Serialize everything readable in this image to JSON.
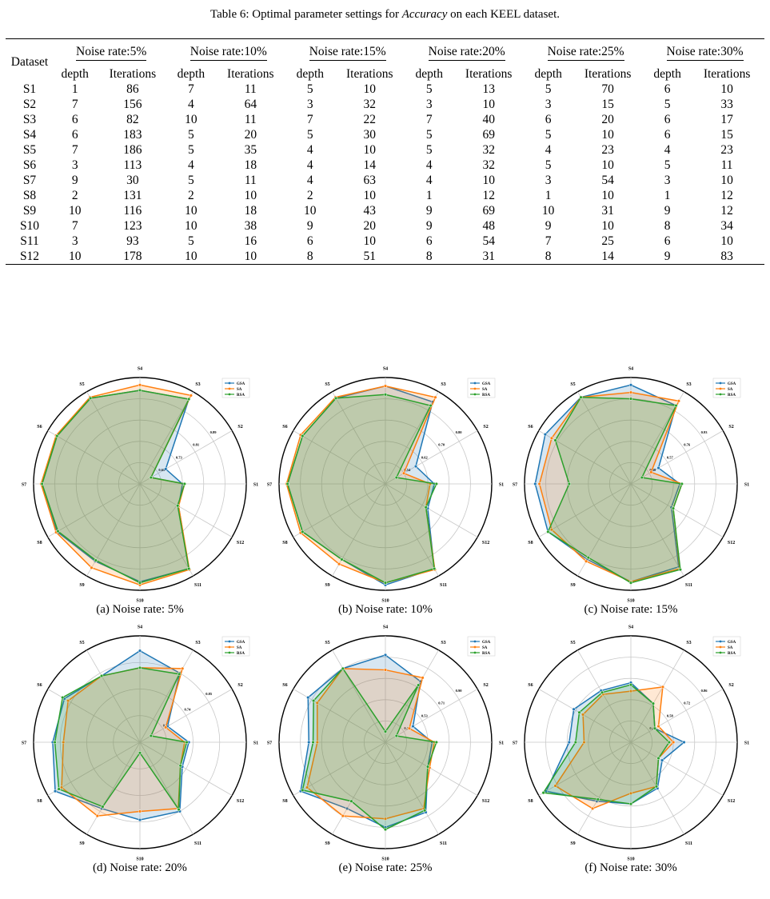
{
  "caption": {
    "prefix": "Table 6: Optimal parameter settings for ",
    "italic": "Accuracy",
    "suffix": " on each KEEL dataset."
  },
  "table": {
    "dataset_header": "Dataset",
    "groups": [
      "Noise rate:5%",
      "Noise rate:10%",
      "Noise rate:15%",
      "Noise rate:20%",
      "Noise rate:25%",
      "Noise rate:30%"
    ],
    "sub_headers": [
      "depth",
      "Iterations"
    ],
    "rows": [
      [
        "S1",
        "1",
        "86",
        "7",
        "11",
        "5",
        "10",
        "5",
        "13",
        "5",
        "70",
        "6",
        "10"
      ],
      [
        "S2",
        "7",
        "156",
        "4",
        "64",
        "3",
        "32",
        "3",
        "10",
        "3",
        "15",
        "5",
        "33"
      ],
      [
        "S3",
        "6",
        "82",
        "10",
        "11",
        "7",
        "22",
        "7",
        "40",
        "6",
        "20",
        "6",
        "17"
      ],
      [
        "S4",
        "6",
        "183",
        "5",
        "20",
        "5",
        "30",
        "5",
        "69",
        "5",
        "10",
        "6",
        "15"
      ],
      [
        "S5",
        "7",
        "186",
        "5",
        "35",
        "4",
        "10",
        "5",
        "32",
        "4",
        "23",
        "4",
        "23"
      ],
      [
        "S6",
        "3",
        "113",
        "4",
        "18",
        "4",
        "14",
        "4",
        "32",
        "5",
        "10",
        "5",
        "11"
      ],
      [
        "S7",
        "9",
        "30",
        "5",
        "11",
        "4",
        "63",
        "4",
        "10",
        "3",
        "54",
        "3",
        "10"
      ],
      [
        "S8",
        "2",
        "131",
        "2",
        "10",
        "2",
        "10",
        "1",
        "12",
        "1",
        "10",
        "1",
        "12"
      ],
      [
        "S9",
        "10",
        "116",
        "10",
        "18",
        "10",
        "43",
        "9",
        "69",
        "10",
        "31",
        "9",
        "12"
      ],
      [
        "S10",
        "7",
        "123",
        "10",
        "38",
        "9",
        "20",
        "9",
        "48",
        "9",
        "10",
        "8",
        "34"
      ],
      [
        "S11",
        "3",
        "93",
        "5",
        "16",
        "6",
        "10",
        "6",
        "54",
        "7",
        "25",
        "6",
        "10"
      ],
      [
        "S12",
        "10",
        "178",
        "10",
        "10",
        "8",
        "51",
        "8",
        "31",
        "8",
        "14",
        "9",
        "83"
      ]
    ]
  },
  "chart_data": [
    {
      "type": "radar",
      "caption": "(a) Noise rate: 5%",
      "categories": [
        "S1",
        "S2",
        "S3",
        "S4",
        "S5",
        "S6",
        "S7",
        "S8",
        "S9",
        "S10",
        "S11",
        "S12"
      ],
      "ring_labels": [
        "0.65",
        "0.73",
        "0.81",
        "0.89"
      ],
      "series": [
        {
          "name": "GSA",
          "color": "#1f77b4",
          "values": [
            0.4,
            0.28,
            0.92,
            0.88,
            0.93,
            0.9,
            0.92,
            0.9,
            0.84,
            0.92,
            0.92,
            0.42
          ]
        },
        {
          "name": "SA",
          "color": "#ff7f0e",
          "values": [
            0.42,
            0.12,
            0.96,
            0.93,
            0.94,
            0.91,
            0.93,
            0.91,
            0.91,
            0.95,
            0.93,
            0.42
          ]
        },
        {
          "name": "RSA",
          "color": "#2ca02c",
          "values": [
            0.42,
            0.12,
            0.92,
            0.88,
            0.93,
            0.9,
            0.92,
            0.89,
            0.83,
            0.93,
            0.92,
            0.41
          ]
        }
      ]
    },
    {
      "type": "radar",
      "caption": "(b) Noise rate: 10%",
      "categories": [
        "S1",
        "S2",
        "S3",
        "S4",
        "S5",
        "S6",
        "S7",
        "S8",
        "S9",
        "S10",
        "S11",
        "S12"
      ],
      "ring_labels": [
        "0.54",
        "0.62",
        "0.70",
        "0.80"
      ],
      "series": [
        {
          "name": "GSA",
          "color": "#1f77b4",
          "values": [
            0.46,
            0.33,
            0.89,
            0.92,
            0.93,
            0.9,
            0.92,
            0.9,
            0.82,
            0.95,
            0.92,
            0.46
          ]
        },
        {
          "name": "SA",
          "color": "#ff7f0e",
          "values": [
            0.42,
            0.2,
            0.94,
            0.92,
            0.94,
            0.92,
            0.93,
            0.92,
            0.87,
            0.93,
            0.93,
            0.44
          ]
        },
        {
          "name": "RSA",
          "color": "#2ca02c",
          "values": [
            0.48,
            0.12,
            0.85,
            0.84,
            0.93,
            0.9,
            0.92,
            0.9,
            0.82,
            0.93,
            0.92,
            0.44
          ]
        }
      ]
    },
    {
      "type": "radar",
      "caption": "(c) Noise rate: 15%",
      "categories": [
        "S1",
        "S2",
        "S3",
        "S4",
        "S5",
        "S6",
        "S7",
        "S8",
        "S9",
        "S10",
        "S11",
        "S12"
      ],
      "ring_labels": [
        "0.38",
        "0.57",
        "0.76",
        "0.93"
      ],
      "series": [
        {
          "name": "GSA",
          "color": "#1f77b4",
          "values": [
            0.46,
            0.3,
            0.85,
            0.93,
            0.94,
            0.93,
            0.9,
            0.9,
            0.82,
            0.92,
            0.9,
            0.44
          ]
        },
        {
          "name": "SA",
          "color": "#ff7f0e",
          "values": [
            0.48,
            0.22,
            0.9,
            0.86,
            0.94,
            0.86,
            0.86,
            0.86,
            0.84,
            0.92,
            0.92,
            0.46
          ]
        },
        {
          "name": "RSA",
          "color": "#2ca02c",
          "values": [
            0.48,
            0.12,
            0.85,
            0.8,
            0.94,
            0.82,
            0.58,
            0.9,
            0.8,
            0.93,
            0.93,
            0.46
          ]
        }
      ]
    },
    {
      "type": "radar",
      "caption": "(d) Noise rate: 20%",
      "categories": [
        "S1",
        "S2",
        "S3",
        "S4",
        "S5",
        "S6",
        "S7",
        "S8",
        "S9",
        "S10",
        "S11",
        "S12"
      ],
      "ring_labels": [
        "0.39",
        "0.74",
        "0.85"
      ],
      "series": [
        {
          "name": "GSA",
          "color": "#1f77b4",
          "values": [
            0.46,
            0.3,
            0.75,
            0.86,
            0.72,
            0.82,
            0.82,
            0.92,
            0.72,
            0.73,
            0.75,
            0.46
          ]
        },
        {
          "name": "SA",
          "color": "#ff7f0e",
          "values": [
            0.42,
            0.28,
            0.8,
            0.7,
            0.72,
            0.78,
            0.72,
            0.85,
            0.8,
            0.65,
            0.72,
            0.44
          ]
        },
        {
          "name": "RSA",
          "color": "#2ca02c",
          "values": [
            0.44,
            0.12,
            0.74,
            0.7,
            0.72,
            0.84,
            0.8,
            0.88,
            0.7,
            0.1,
            0.73,
            0.44
          ]
        }
      ]
    },
    {
      "type": "radar",
      "caption": "(e) Noise rate: 25%",
      "categories": [
        "S1",
        "S2",
        "S3",
        "S4",
        "S5",
        "S6",
        "S7",
        "S8",
        "S9",
        "S10",
        "S11",
        "S12"
      ],
      "ring_labels": [
        "0.33",
        "0.53",
        "0.71",
        "0.90"
      ],
      "series": [
        {
          "name": "GSA",
          "color": "#1f77b4",
          "values": [
            0.44,
            0.3,
            0.66,
            0.82,
            0.8,
            0.84,
            0.72,
            0.92,
            0.72,
            0.8,
            0.76,
            0.46
          ]
        },
        {
          "name": "SA",
          "color": "#ff7f0e",
          "values": [
            0.46,
            0.26,
            0.7,
            0.68,
            0.8,
            0.74,
            0.64,
            0.85,
            0.8,
            0.72,
            0.72,
            0.48
          ]
        },
        {
          "name": "RSA",
          "color": "#2ca02c",
          "values": [
            0.48,
            0.12,
            0.62,
            0.1,
            0.8,
            0.78,
            0.68,
            0.9,
            0.64,
            0.82,
            0.74,
            0.46
          ]
        }
      ]
    },
    {
      "type": "radar",
      "caption": "(f) Noise rate: 30%",
      "categories": [
        "S1",
        "S2",
        "S3",
        "S4",
        "S5",
        "S6",
        "S7",
        "S8",
        "S9",
        "S10",
        "S11",
        "S12"
      ],
      "ring_labels": [
        "0.48",
        "0.58",
        "0.72",
        "0.86"
      ],
      "series": [
        {
          "name": "GSA",
          "color": "#1f77b4",
          "values": [
            0.5,
            0.26,
            0.42,
            0.56,
            0.56,
            0.62,
            0.58,
            0.92,
            0.64,
            0.58,
            0.5,
            0.34
          ]
        },
        {
          "name": "SA",
          "color": "#ff7f0e",
          "values": [
            0.4,
            0.3,
            0.6,
            0.48,
            0.52,
            0.52,
            0.44,
            0.82,
            0.72,
            0.48,
            0.48,
            0.3
          ]
        },
        {
          "name": "RSA",
          "color": "#2ca02c",
          "values": [
            0.36,
            0.26,
            0.42,
            0.54,
            0.54,
            0.56,
            0.52,
            0.95,
            0.62,
            0.58,
            0.48,
            0.3
          ]
        }
      ]
    }
  ]
}
